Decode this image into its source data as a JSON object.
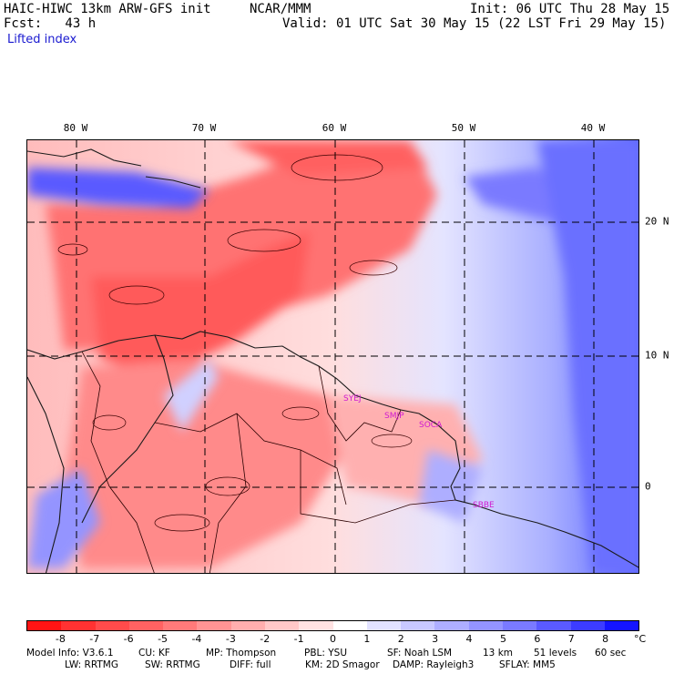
{
  "header": {
    "model": "HAIC-HIWC 13km ARW-GFS init",
    "org": "NCAR/MMM",
    "init": "Init: 06 UTC Thu 28 May 15",
    "fcst": "Fcst:   43 h",
    "valid": "Valid: 01 UTC Sat 30 May 15 (22 LST Fri 29 May 15)",
    "field": "Lifted index"
  },
  "map": {
    "lon_labels": [
      "80 W",
      "70 W",
      "60 W",
      "50 W",
      "40 W"
    ],
    "lat_labels": [
      "20 N",
      "10 N",
      "0"
    ],
    "stations": [
      "SYEJ",
      "SMJP",
      "SOCA",
      "SBBE"
    ]
  },
  "colorbar": {
    "tick_labels": [
      "-8",
      "-7",
      "-6",
      "-5",
      "-4",
      "-3",
      "-2",
      "-1",
      "0",
      "1",
      "2",
      "3",
      "4",
      "5",
      "6",
      "7",
      "8"
    ],
    "unit": "°C",
    "colors": [
      "#ff1414",
      "#ff3232",
      "#ff4b4b",
      "#ff6262",
      "#ff7a7a",
      "#ff9494",
      "#ffaeae",
      "#ffc8c8",
      "#ffe2e2",
      "#ffffff",
      "#e2e2ff",
      "#c8c8ff",
      "#aeaeff",
      "#9494ff",
      "#7a7aff",
      "#5a5aff",
      "#3c3cff",
      "#1414ff"
    ]
  },
  "footer": {
    "line1": [
      "Model Info: V3.6.1",
      "CU: KF",
      "MP: Thompson",
      "PBL: YSU",
      "SF: Noah LSM",
      "13 km",
      "51 levels",
      "60 sec"
    ],
    "line2": [
      "LW: RRTMG",
      "SW: RRTMG",
      "DIFF: full",
      "KM: 2D Smagor",
      "DAMP: Rayleigh3",
      "SFLAY: MM5"
    ]
  }
}
